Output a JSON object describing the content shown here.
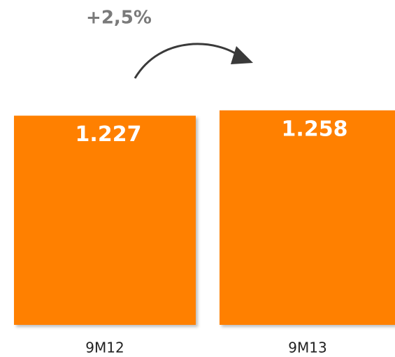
{
  "chart_data": {
    "type": "bar",
    "annotation": "+2,5%",
    "categories": [
      "9M12",
      "9M13"
    ],
    "values": [
      1227,
      1258
    ],
    "value_labels": [
      "1.227",
      "1.258"
    ],
    "color": "#ff8000"
  }
}
